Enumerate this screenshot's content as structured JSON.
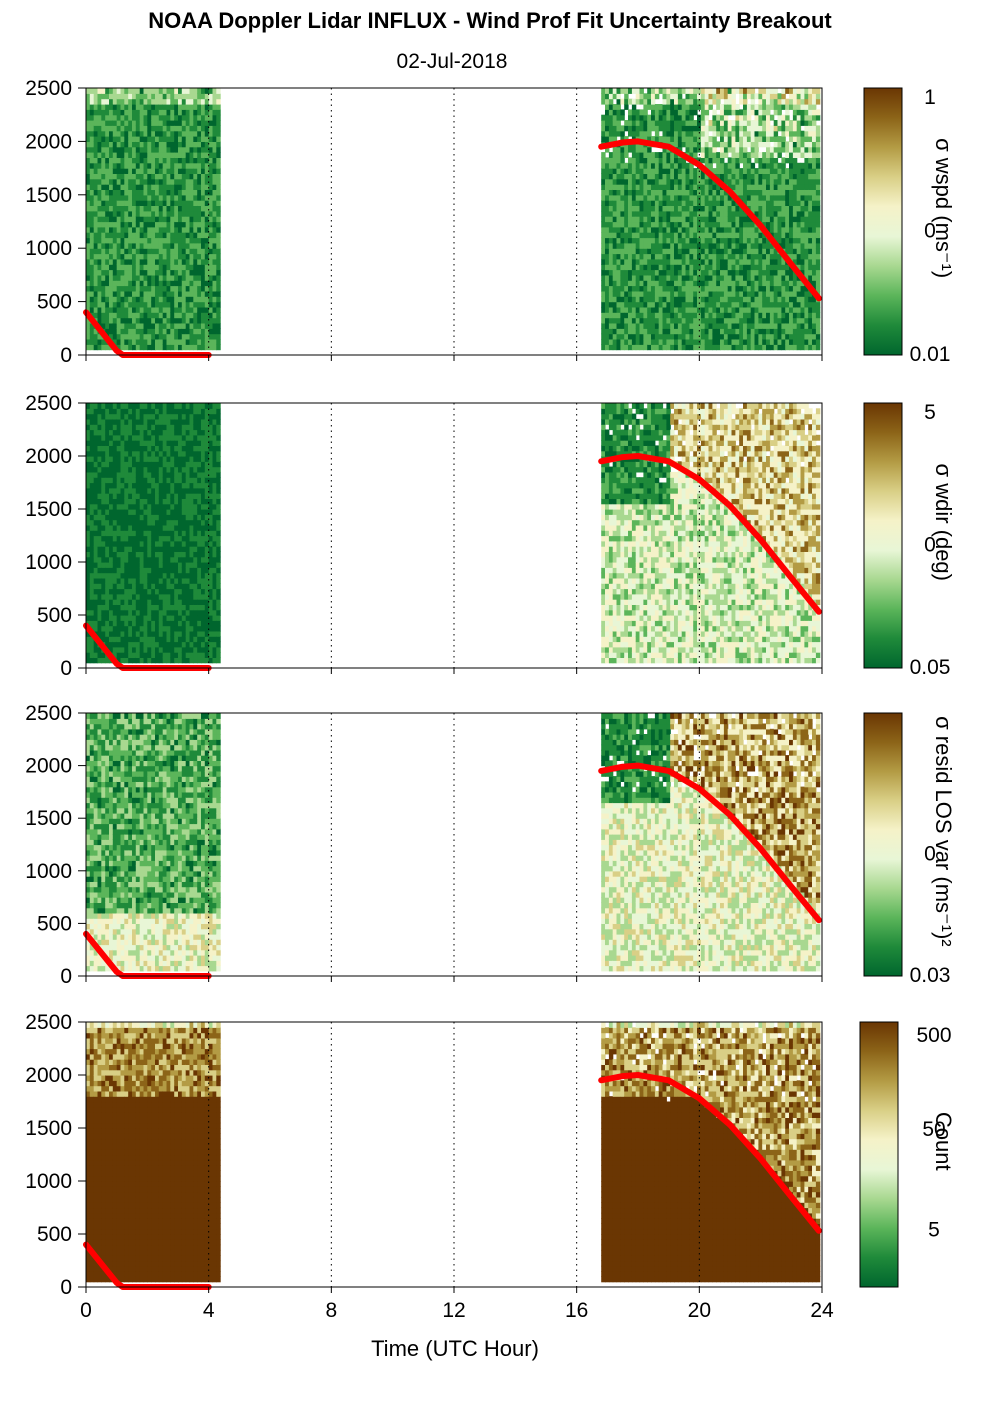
{
  "title": "NOAA Doppler Lidar INFLUX - Wind Prof Fit Uncertainty Breakout",
  "date": "02-Jul-2018",
  "xlabel": "Time (UTC Hour)",
  "colors": {
    "colormap": [
      "#00662e",
      "#1f8a3a",
      "#5bb55a",
      "#a8d890",
      "#e8f6d6",
      "#f5f2c8",
      "#d9cf86",
      "#b39b44",
      "#8c6418",
      "#6a3603"
    ],
    "boundary_layer_line": "#ff0000",
    "gridline": "#000000"
  },
  "chart_data": [
    {
      "type": "heatmap",
      "colorbar_label": "σ wspd (ms⁻¹)",
      "colorbar_ticks": [
        "1",
        "0",
        "0.01"
      ],
      "scale": "log",
      "xlim": [
        0,
        24
      ],
      "ylim": [
        0,
        2500
      ],
      "xticks": [
        0,
        4,
        8,
        12,
        16,
        20,
        24
      ],
      "yticks": [
        0,
        500,
        1000,
        1500,
        2000,
        2500
      ],
      "data_periods": [
        [
          0,
          4.3
        ],
        [
          16.8,
          23.9
        ]
      ],
      "boundary_layer_height": {
        "x": [
          0,
          1,
          1.2,
          4,
          16.8,
          17.5,
          18,
          19,
          20,
          21,
          22,
          23,
          23.9
        ],
        "y": [
          400,
          40,
          0,
          0,
          1950,
          1990,
          2000,
          1950,
          1780,
          1530,
          1210,
          850,
          530
        ]
      }
    },
    {
      "type": "heatmap",
      "colorbar_label": "σ wdir (deg)",
      "colorbar_ticks": [
        "5",
        "0",
        "0.05"
      ],
      "scale": "log",
      "xlim": [
        0,
        24
      ],
      "ylim": [
        0,
        2500
      ],
      "xticks": [
        0,
        4,
        8,
        12,
        16,
        20,
        24
      ],
      "yticks": [
        0,
        500,
        1000,
        1500,
        2000,
        2500
      ],
      "data_periods": [
        [
          0,
          4.3
        ],
        [
          16.8,
          23.9
        ]
      ],
      "boundary_layer_height": {
        "x": [
          0,
          1,
          1.2,
          4,
          16.8,
          17.5,
          18,
          19,
          20,
          21,
          22,
          23,
          23.9
        ],
        "y": [
          400,
          40,
          0,
          0,
          1950,
          1990,
          2000,
          1950,
          1780,
          1530,
          1210,
          850,
          530
        ]
      }
    },
    {
      "type": "heatmap",
      "colorbar_label": "σ resid LOS var (ms⁻¹)²",
      "colorbar_ticks": [
        "0",
        "0.03"
      ],
      "scale": "log",
      "xlim": [
        0,
        24
      ],
      "ylim": [
        0,
        2500
      ],
      "xticks": [
        0,
        4,
        8,
        12,
        16,
        20,
        24
      ],
      "yticks": [
        0,
        500,
        1000,
        1500,
        2000,
        2500
      ],
      "data_periods": [
        [
          0,
          4.3
        ],
        [
          16.8,
          23.9
        ]
      ],
      "boundary_layer_height": {
        "x": [
          0,
          1,
          1.2,
          4,
          16.8,
          17.5,
          18,
          19,
          20,
          21,
          22,
          23,
          23.9
        ],
        "y": [
          400,
          40,
          0,
          0,
          1950,
          1990,
          2000,
          1950,
          1780,
          1530,
          1210,
          850,
          530
        ]
      }
    },
    {
      "type": "heatmap",
      "colorbar_label": "Count",
      "colorbar_ticks": [
        "500",
        "50",
        "5"
      ],
      "scale": "log",
      "xlim": [
        0,
        24
      ],
      "ylim": [
        0,
        2500
      ],
      "xticks": [
        0,
        4,
        8,
        12,
        16,
        20,
        24
      ],
      "yticks": [
        0,
        500,
        1000,
        1500,
        2000,
        2500
      ],
      "data_periods": [
        [
          0,
          4.3
        ],
        [
          16.8,
          23.9
        ]
      ],
      "boundary_layer_height": {
        "x": [
          0,
          1,
          1.2,
          4,
          16.8,
          17.5,
          18,
          19,
          20,
          21,
          22,
          23,
          23.9
        ],
        "y": [
          400,
          40,
          0,
          0,
          1950,
          1990,
          2000,
          1950,
          1780,
          1530,
          1210,
          850,
          530
        ]
      }
    }
  ]
}
